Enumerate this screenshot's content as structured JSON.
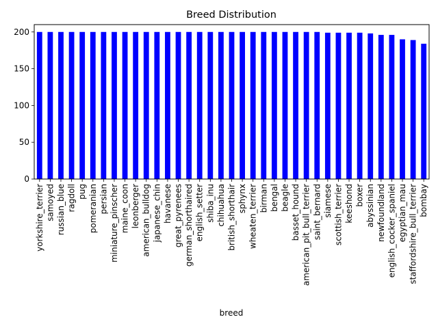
{
  "chart_data": {
    "type": "bar",
    "title": "Breed Distribution",
    "xlabel": "breed",
    "ylabel": "",
    "ylim": [
      0,
      210
    ],
    "yticks": [
      0,
      50,
      100,
      150,
      200
    ],
    "grid": false,
    "legend": "none",
    "bar_color": "#0000ff",
    "categories": [
      "yorkshire_terrier",
      "samoyed",
      "russian_blue",
      "ragdoll",
      "pug",
      "pomeranian",
      "persian",
      "miniature_pinscher",
      "maine_coon",
      "leonberger",
      "american_bulldog",
      "japanese_chin",
      "havanese",
      "great_pyrenees",
      "german_shorthaired",
      "english_setter",
      "shiba_inu",
      "chihuahua",
      "british_shorthair",
      "sphynx",
      "wheaten_terrier",
      "birman",
      "bengal",
      "beagle",
      "basset_hound",
      "american_pit_bull_terrier",
      "saint_bernard",
      "siamese",
      "scottish_terrier",
      "keeshond",
      "boxer",
      "abyssinian",
      "newfoundland",
      "english_cocker_spaniel",
      "egyptian_mau",
      "staffordshire_bull_terrier",
      "bombay"
    ],
    "values": [
      200,
      200,
      200,
      200,
      200,
      200,
      200,
      200,
      200,
      200,
      200,
      200,
      200,
      200,
      200,
      200,
      200,
      200,
      200,
      200,
      200,
      200,
      200,
      200,
      200,
      200,
      200,
      199,
      199,
      199,
      199,
      198,
      196,
      196,
      190,
      189,
      184
    ]
  }
}
